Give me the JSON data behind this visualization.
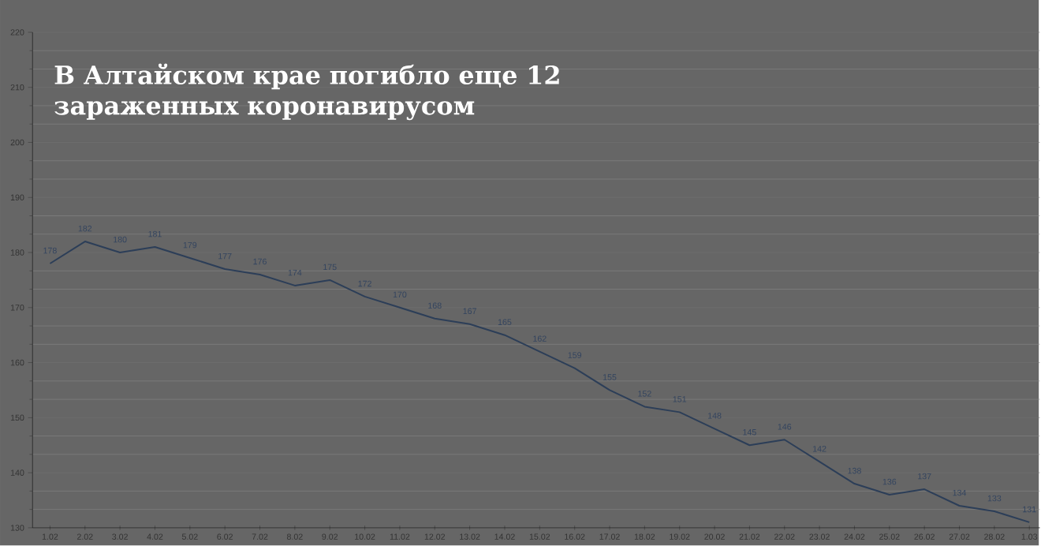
{
  "chart_data": {
    "type": "line",
    "title": "В Алтайском крае погибло еще 12 зараженных коронавирусом",
    "categories": [
      "1.02",
      "2.02",
      "3.02",
      "4.02",
      "5.02",
      "6.02",
      "7.02",
      "8.02",
      "9.02",
      "10.02",
      "11.02",
      "12.02",
      "13.02",
      "14.02",
      "15.02",
      "16.02",
      "17.02",
      "18.02",
      "19.02",
      "20.02",
      "21.02",
      "22.02",
      "23.02",
      "24.02",
      "25.02",
      "26.02",
      "27.02",
      "28.02",
      "1.03"
    ],
    "values": [
      178,
      182,
      180,
      181,
      179,
      177,
      176,
      174,
      175,
      172,
      170,
      168,
      167,
      165,
      162,
      159,
      155,
      152,
      151,
      148,
      145,
      146,
      142,
      138,
      136,
      137,
      134,
      133,
      131
    ],
    "color": "#2c3e58",
    "ylim": [
      130,
      220
    ],
    "yticks": [
      130,
      140,
      150,
      160,
      170,
      180,
      190,
      200,
      210,
      220
    ],
    "grid": "y",
    "data_labels": true,
    "marker": "none",
    "line_style": "solid"
  }
}
